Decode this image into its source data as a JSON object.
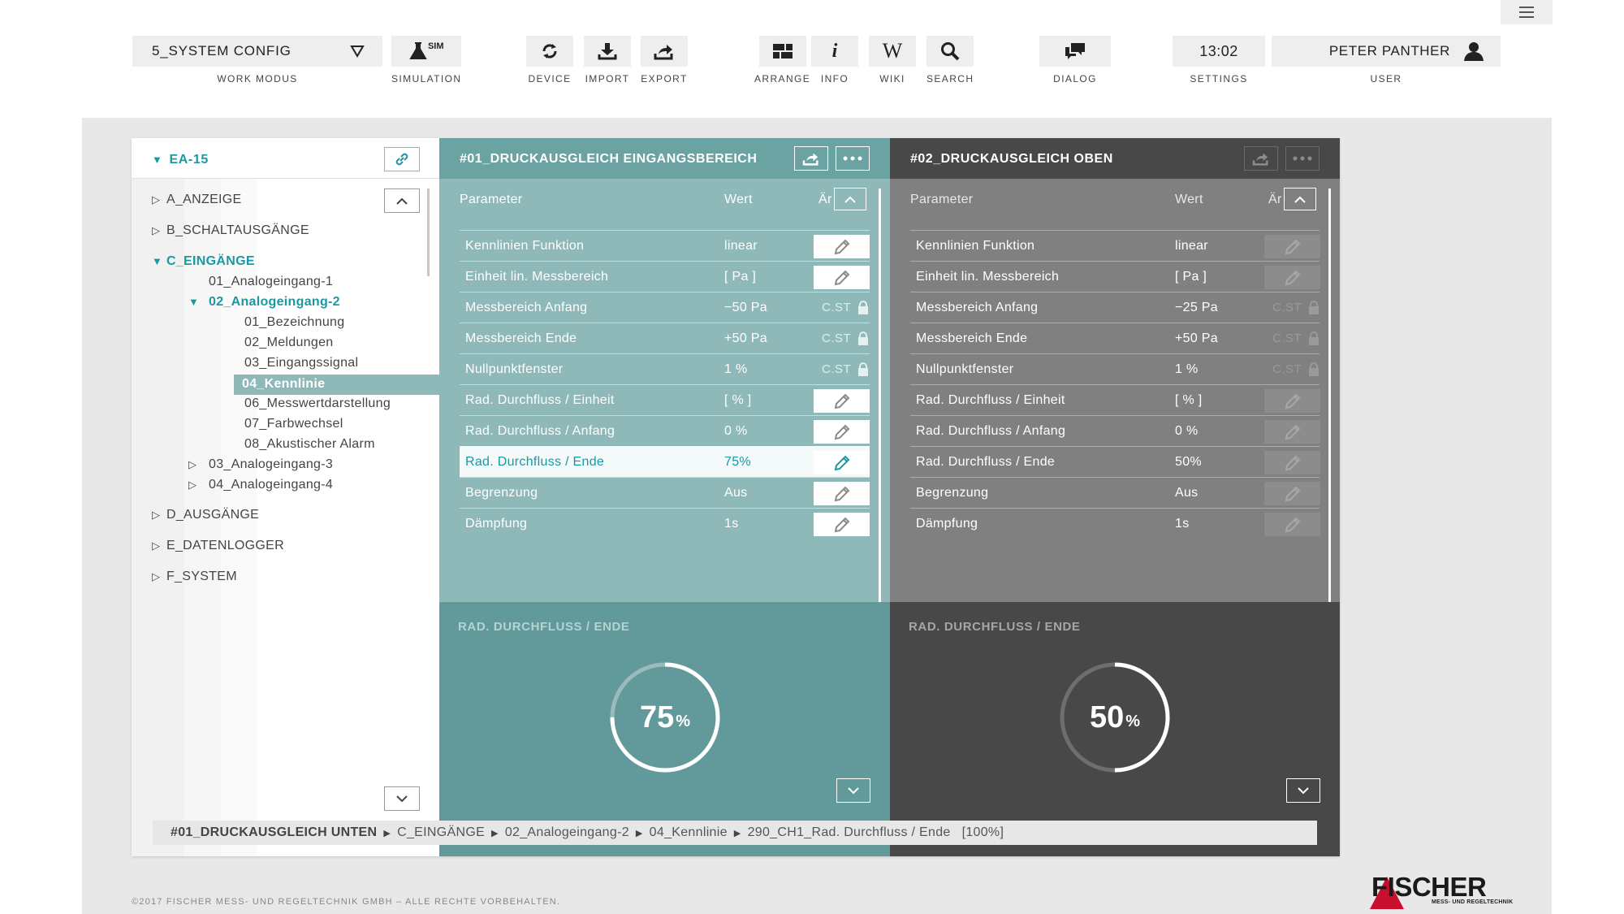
{
  "toolbar": {
    "work_mode": {
      "value": "5_SYSTEM CONFIG",
      "caption": "WORK MODUS"
    },
    "simulation": {
      "icon_text": "SIM",
      "caption": "SIMULATION"
    },
    "device": {
      "caption": "DEVICE"
    },
    "import": {
      "caption": "IMPORT"
    },
    "export": {
      "caption": "EXPORT"
    },
    "arrange": {
      "caption": "ARRANGE"
    },
    "info": {
      "caption": "INFO"
    },
    "wiki": {
      "icon_text": "W",
      "caption": "WIKI"
    },
    "search": {
      "caption": "SEARCH"
    },
    "dialog": {
      "caption": "DIALOG"
    },
    "settings": {
      "time": "13:02",
      "caption": "SETTINGS"
    },
    "user": {
      "name": "PETER PANTHER",
      "caption": "USER"
    }
  },
  "tree": {
    "root": "EA-15",
    "items": [
      {
        "label": "A_ANZEIGE"
      },
      {
        "label": "B_SCHALTAUSGÄNGE"
      },
      {
        "label": "C_EINGÄNGE"
      },
      {
        "label": "01_Analogeingang-1"
      },
      {
        "label": "02_Analogeingang-2"
      },
      {
        "label": "01_Bezeichnung"
      },
      {
        "label": "02_Meldungen"
      },
      {
        "label": "03_Eingangssignal"
      },
      {
        "label": "04_Kennlinie"
      },
      {
        "label": "06_Messwertdarstellung"
      },
      {
        "label": "07_Farbwechsel"
      },
      {
        "label": "08_Akustischer Alarm"
      },
      {
        "label": "03_Analogeingang-3"
      },
      {
        "label": "04_Analogeingang-4"
      },
      {
        "label": "D_AUSGÄNGE"
      },
      {
        "label": "E_DATENLOGGER"
      },
      {
        "label": "F_SYSTEM"
      }
    ]
  },
  "columns": [
    {
      "title": "#01_DRUCKAUSGLEICH EINGANGSBEREICH",
      "hdr_param": "Parameter",
      "hdr_value": "Wert",
      "hdr_change": "Är",
      "rows": [
        {
          "param": "Kennlinien Funktion",
          "value": "linear",
          "cst": ""
        },
        {
          "param": "Einheit lin. Messbereich",
          "value": "[ Pa ]",
          "cst": ""
        },
        {
          "param": "Messbereich Anfang",
          "value": "−50 Pa",
          "cst": "C.ST"
        },
        {
          "param": "Messbereich Ende",
          "value": "+50 Pa",
          "cst": "C.ST"
        },
        {
          "param": "Nullpunktfenster",
          "value": "1 %",
          "cst": "C.ST"
        },
        {
          "param": "Rad. Durchfluss / Einheit",
          "value": "[ % ]",
          "cst": ""
        },
        {
          "param": "Rad. Durchfluss / Anfang",
          "value": "0 %",
          "cst": ""
        },
        {
          "param": "Rad. Durchfluss / Ende",
          "value": "75%",
          "cst": ""
        },
        {
          "param": "Begrenzung",
          "value": "Aus",
          "cst": ""
        },
        {
          "param": "Dämpfung",
          "value": "1s",
          "cst": ""
        }
      ],
      "gauge_title": "RAD. DURCHFLUSS / ENDE",
      "gauge_value": "75",
      "gauge_unit": "%",
      "gauge_fraction": 0.75
    },
    {
      "title": "#02_DRUCKAUSGLEICH OBEN",
      "hdr_param": "Parameter",
      "hdr_value": "Wert",
      "hdr_change": "Är",
      "rows": [
        {
          "param": "Kennlinien Funktion",
          "value": "linear",
          "cst": ""
        },
        {
          "param": "Einheit lin. Messbereich",
          "value": "[ Pa ]",
          "cst": ""
        },
        {
          "param": "Messbereich Anfang",
          "value": "−25 Pa",
          "cst": "C.ST"
        },
        {
          "param": "Messbereich Ende",
          "value": "+50 Pa",
          "cst": "C.ST"
        },
        {
          "param": "Nullpunktfenster",
          "value": "1 %",
          "cst": "C.ST"
        },
        {
          "param": "Rad. Durchfluss / Einheit",
          "value": "[ % ]",
          "cst": ""
        },
        {
          "param": "Rad. Durchfluss / Anfang",
          "value": "0 %",
          "cst": ""
        },
        {
          "param": "Rad. Durchfluss / Ende",
          "value": "50%",
          "cst": ""
        },
        {
          "param": "Begrenzung",
          "value": "Aus",
          "cst": ""
        },
        {
          "param": "Dämpfung",
          "value": "1s",
          "cst": ""
        }
      ],
      "gauge_title": "RAD. DURCHFLUSS / ENDE",
      "gauge_value": "50",
      "gauge_unit": "%",
      "gauge_fraction": 0.5
    }
  ],
  "breadcrumb": {
    "items": [
      "#01_DRUCKAUSGLEICH UNTEN",
      "C_EINGÄNGE",
      "02_Analogeingang-2",
      "04_Kennlinie",
      "290_CH1_Rad. Durchfluss / Ende"
    ],
    "percent": "[100%]"
  },
  "footer": {
    "copyright": "©2017 FISCHER MESS- UND REGELTECHNIK GMBH – ALLE RECHTE VORBEHALTEN.",
    "logo_word": "FISCHER",
    "logo_tag": "MESS- UND REGELTECHNIK"
  },
  "colors": {
    "teal_accent": "#1a99a3",
    "teal_panel": "#8fb9b9",
    "teal_header": "#6ba2a2",
    "teal_gauge_bg": "#62999a",
    "grey_panel": "#808080",
    "dark_header": "#484848",
    "logo_red": "#c8102e"
  }
}
